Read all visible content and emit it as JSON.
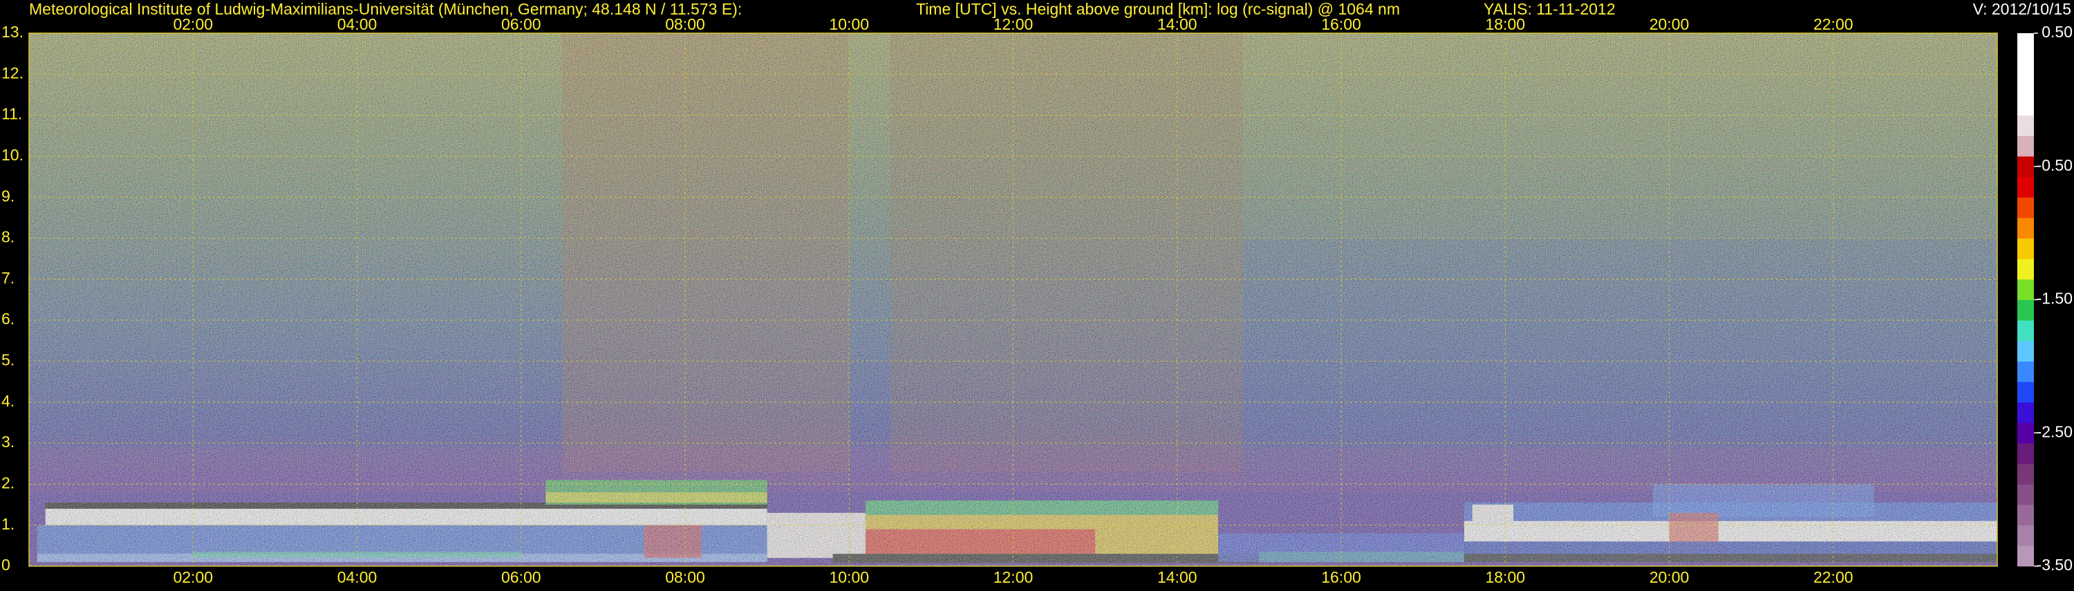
{
  "chart_data": {
    "type": "heatmap",
    "title": "Meteorological Institute of Ludwig-Maximilians-Universität (München, Germany; 48.148 N / 11.573 E):",
    "subtitle": "Time [UTC] vs. Height above ground [km]: log (rc-signal) @ 1064 nm",
    "station": "YALIS: 11-11-2012",
    "version": "V: 2012/10/15",
    "xlim": [
      0,
      24
    ],
    "xticks": [
      {
        "value": 2,
        "label": "02:00"
      },
      {
        "value": 4,
        "label": "04:00"
      },
      {
        "value": 6,
        "label": "06:00"
      },
      {
        "value": 8,
        "label": "08:00"
      },
      {
        "value": 10,
        "label": "10:00"
      },
      {
        "value": 12,
        "label": "12:00"
      },
      {
        "value": 14,
        "label": "14:00"
      },
      {
        "value": 16,
        "label": "16:00"
      },
      {
        "value": 18,
        "label": "18:00"
      },
      {
        "value": 20,
        "label": "20:00"
      },
      {
        "value": 22,
        "label": "22:00"
      }
    ],
    "ylim": [
      0,
      13
    ],
    "yticks": [
      0,
      {
        "value": 1,
        "label": "1."
      },
      {
        "value": 2,
        "label": "2."
      },
      {
        "value": 3,
        "label": "3."
      },
      {
        "value": 4,
        "label": "4."
      },
      {
        "value": 5,
        "label": "5."
      },
      {
        "value": 6,
        "label": "6."
      },
      {
        "value": 7,
        "label": "7."
      },
      {
        "value": 8,
        "label": "8."
      },
      {
        "value": 9,
        "label": "9."
      },
      {
        "value": 10,
        "label": "10."
      },
      {
        "value": 11,
        "label": "11."
      },
      {
        "value": 12,
        "label": "12."
      },
      {
        "value": 13,
        "label": "13."
      }
    ],
    "grid": true,
    "colorbar": {
      "clim": [
        -3.5,
        0.5
      ],
      "ticks": [
        {
          "value": 0.5,
          "label": "0.50"
        },
        {
          "value": -0.5,
          "label": "-0.50"
        },
        {
          "value": -1.5,
          "label": "-1.50"
        },
        {
          "value": -2.5,
          "label": "-2.50"
        },
        {
          "value": -3.5,
          "label": "-3.50"
        }
      ],
      "colors": [
        "#b898b8",
        "#a882a8",
        "#986a98",
        "#885088",
        "#783878",
        "#6a1c7a",
        "#5800a8",
        "#3a10d8",
        "#2048f8",
        "#3a88ff",
        "#5cc8ff",
        "#40e0c0",
        "#28c850",
        "#78e028",
        "#f0f020",
        "#f8c800",
        "#f88800",
        "#f04800",
        "#e00000",
        "#c80000",
        "#d8b0b8",
        "#ecdce0",
        "#ffffff",
        "#ffffff",
        "#ffffff",
        "#ffffff"
      ]
    }
  }
}
